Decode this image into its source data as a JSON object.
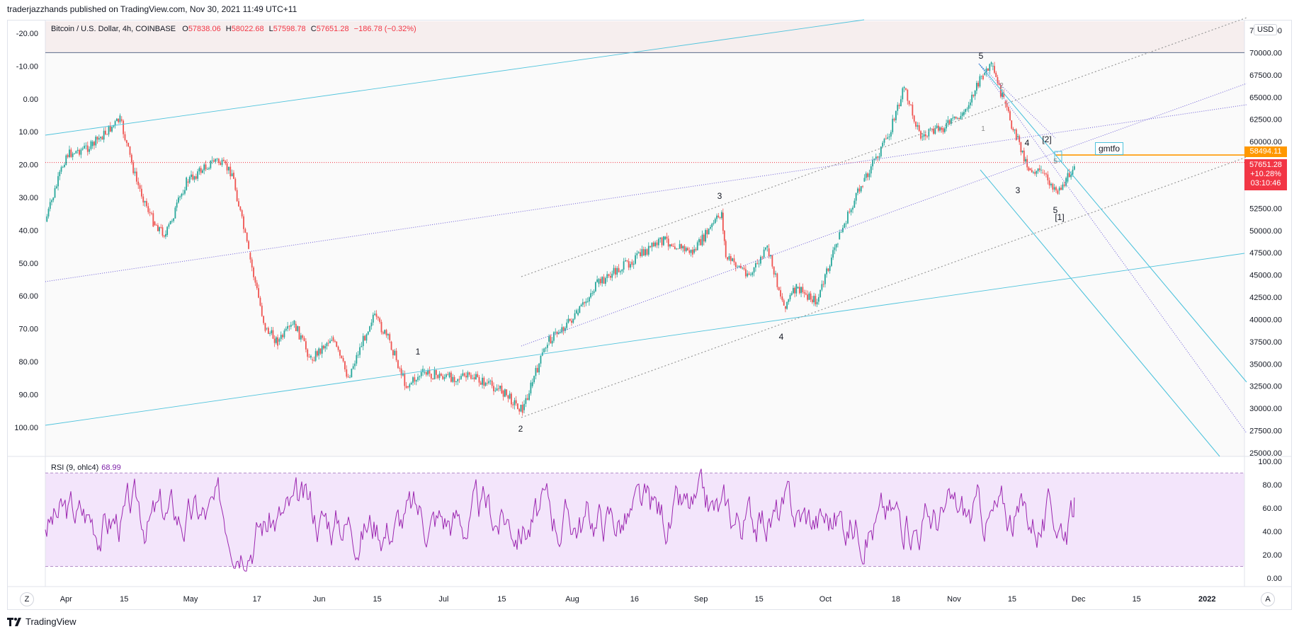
{
  "header": {
    "text": "traderjazzhands published on TradingView.com, Nov 30, 2021 11:49 UTC+11"
  },
  "legend": {
    "symbol": "Bitcoin / U.S. Dollar, 4h, COINBASE",
    "o_label": "O",
    "o": "57838.06",
    "h_label": "H",
    "h": "58022.68",
    "l_label": "L",
    "l": "57598.78",
    "c_label": "C",
    "c": "57651.28",
    "change": "−186.78 (−0.32%)"
  },
  "rsi_legend": {
    "label": "RSI (9, ohlc4)",
    "value": "68.99"
  },
  "currency_button": "USD",
  "z_button": "Z",
  "a_button": "A",
  "brand": "TradingView",
  "annotation_text": "gmtfo",
  "price_labels": {
    "level": "58494.11",
    "last": "57651.28",
    "last_change": "+10.28%",
    "countdown": "03:10:46"
  },
  "colors": {
    "up": "#26a69a",
    "down": "#ef5350",
    "rsi": "#9c27b0",
    "channel": "#4fc3dc",
    "level": "#ff9800",
    "last": "#f23645"
  },
  "chart_data": [
    {
      "type": "line",
      "title": "Bitcoin / U.S. Dollar, 4h, COINBASE",
      "right_axis_ticks": [
        "72500.00",
        "70000.00",
        "67500.00",
        "65000.00",
        "62500.00",
        "60000.00",
        "57500.00",
        "55000.00",
        "52500.00",
        "50000.00",
        "47500.00",
        "45000.00",
        "42500.00",
        "40000.00",
        "37500.00",
        "35000.00",
        "32500.00",
        "30000.00",
        "27500.00",
        "25000.00"
      ],
      "left_axis_ticks": [
        "-20.00",
        "-10.00",
        "0.00",
        "10.00",
        "20.00",
        "30.00",
        "40.00",
        "50.00",
        "60.00",
        "70.00",
        "80.00",
        "90.00",
        "100.00"
      ],
      "x_ticks": [
        "Apr",
        "15",
        "May",
        "17",
        "Jun",
        "15",
        "Jul",
        "15",
        "Aug",
        "16",
        "Sep",
        "15",
        "Oct",
        "18",
        "Nov",
        "15",
        "Dec",
        "15",
        "2022"
      ],
      "ylim": [
        25000,
        72500
      ],
      "price_path": {
        "x": [
          "2021-03-27",
          "2021-04-01",
          "2021-04-07",
          "2021-04-14",
          "2021-04-18",
          "2021-04-22",
          "2021-04-25",
          "2021-04-30",
          "2021-05-07",
          "2021-05-11",
          "2021-05-15",
          "2021-05-19",
          "2021-05-22",
          "2021-05-26",
          "2021-05-30",
          "2021-06-04",
          "2021-06-08",
          "2021-06-14",
          "2021-06-18",
          "2021-06-22",
          "2021-06-26",
          "2021-07-02",
          "2021-07-08",
          "2021-07-15",
          "2021-07-20",
          "2021-07-22",
          "2021-07-26",
          "2021-08-02",
          "2021-08-07",
          "2021-08-15",
          "2021-08-23",
          "2021-08-30",
          "2021-09-06",
          "2021-09-07",
          "2021-09-13",
          "2021-09-17",
          "2021-09-21",
          "2021-09-24",
          "2021-09-29",
          "2021-10-04",
          "2021-10-10",
          "2021-10-16",
          "2021-10-20",
          "2021-10-24",
          "2021-10-29",
          "2021-11-03",
          "2021-11-08",
          "2021-11-10",
          "2021-11-13",
          "2021-11-16",
          "2021-11-19",
          "2021-11-22",
          "2021-11-26",
          "2021-11-28",
          "2021-11-30"
        ],
        "y": [
          51000,
          58500,
          59500,
          62500,
          55500,
          51000,
          49500,
          55500,
          58000,
          56500,
          47500,
          39000,
          37500,
          39500,
          35500,
          38000,
          33500,
          40500,
          37500,
          32500,
          34000,
          33500,
          33500,
          32000,
          29800,
          32500,
          37500,
          40500,
          44000,
          46500,
          49000,
          47500,
          52000,
          47000,
          45000,
          48000,
          41500,
          43500,
          42000,
          49000,
          55500,
          60500,
          66000,
          60500,
          61500,
          63000,
          67500,
          68500,
          64500,
          60500,
          57000,
          56500,
          54500,
          55500,
          57651
        ]
      }
    },
    {
      "type": "line",
      "title": "RSI (9, ohlc4)",
      "series": [
        {
          "name": "RSI (9, ohlc4)",
          "last": 68.99
        }
      ],
      "y_ticks": [
        "100.00",
        "80.00",
        "60.00",
        "40.00",
        "20.00",
        "0.00"
      ],
      "ylim": [
        0,
        100
      ],
      "bands": [
        90,
        10
      ]
    }
  ],
  "wave_labels": [
    "5",
    "2",
    "1",
    "4",
    "[2]",
    "3",
    "5",
    "[1]",
    "1",
    "2",
    "3",
    "4",
    "5"
  ]
}
